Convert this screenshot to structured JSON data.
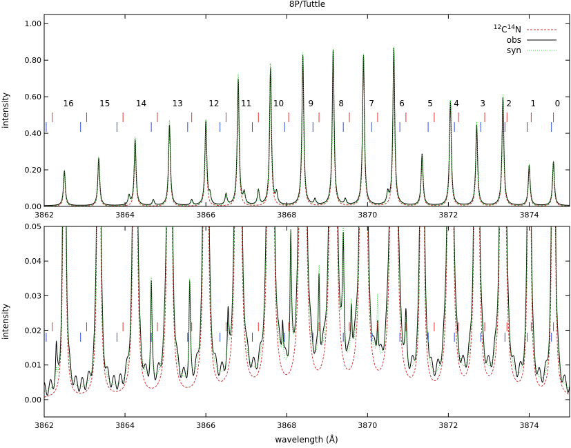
{
  "figure": {
    "title": "8P/Tuttle",
    "xlabel": "wavelength (Å)",
    "ylabel": "intensity"
  },
  "legend": {
    "entries": [
      {
        "label_parts": [
          "12",
          "C",
          "14",
          "N"
        ],
        "color": "#cc3333",
        "style": "dashed"
      },
      {
        "label": "obs",
        "color": "#000000",
        "style": "solid"
      },
      {
        "label": "syn",
        "color": "#22cc22",
        "style": "dotted"
      }
    ]
  },
  "chart_data": [
    {
      "type": "line",
      "panel": "top",
      "xlim": [
        3862,
        3875
      ],
      "ylim": [
        0,
        1.05
      ],
      "xticks": [
        "3862",
        "3864",
        "3866",
        "3868",
        "3870",
        "3872",
        "3874"
      ],
      "yticks": [
        "0.00",
        "0.20",
        "0.40",
        "0.60",
        "0.80",
        "1.00"
      ],
      "xtick_values": [
        3862,
        3864,
        3866,
        3868,
        3870,
        3872,
        3874
      ],
      "ytick_values": [
        0,
        0.2,
        0.4,
        0.6,
        0.8,
        1.0
      ],
      "line_labels": [
        {
          "text": "16",
          "x": 3862.6
        },
        {
          "text": "15",
          "x": 3863.5
        },
        {
          "text": "14",
          "x": 3864.4
        },
        {
          "text": "13",
          "x": 3865.3
        },
        {
          "text": "12",
          "x": 3866.2
        },
        {
          "text": "11",
          "x": 3867.0
        },
        {
          "text": "10",
          "x": 3867.8
        },
        {
          "text": "9",
          "x": 3868.6
        },
        {
          "text": "8",
          "x": 3869.35
        },
        {
          "text": "7",
          "x": 3870.1
        },
        {
          "text": "6",
          "x": 3870.85
        },
        {
          "text": "5",
          "x": 3871.55
        },
        {
          "text": "4",
          "x": 3872.2
        },
        {
          "text": "3",
          "x": 3872.85
        },
        {
          "text": "2",
          "x": 3873.5
        },
        {
          "text": "1",
          "x": 3874.1
        },
        {
          "text": "0",
          "x": 3874.7
        }
      ],
      "series": [
        {
          "name": "obs",
          "peaks": [
            [
              3862.5,
              0.19
            ],
            [
              3863.35,
              0.26
            ],
            [
              3864.25,
              0.36
            ],
            [
              3865.1,
              0.44
            ],
            [
              3866.0,
              0.46
            ],
            [
              3866.8,
              0.69
            ],
            [
              3867.6,
              0.75
            ],
            [
              3868.4,
              0.82
            ],
            [
              3869.15,
              0.85
            ],
            [
              3869.9,
              0.82
            ],
            [
              3870.65,
              0.86
            ],
            [
              3871.35,
              0.28
            ],
            [
              3872.05,
              0.57
            ],
            [
              3872.7,
              0.44
            ],
            [
              3873.35,
              0.59
            ],
            [
              3874.0,
              0.22
            ],
            [
              3874.6,
              0.24
            ]
          ]
        },
        {
          "name": "syn",
          "peaks": [
            [
              3862.5,
              0.2
            ],
            [
              3863.35,
              0.27
            ],
            [
              3864.25,
              0.38
            ],
            [
              3865.1,
              0.47
            ],
            [
              3866.0,
              0.47
            ],
            [
              3866.8,
              0.72
            ],
            [
              3867.6,
              0.78
            ],
            [
              3868.4,
              0.84
            ],
            [
              3869.15,
              0.86
            ],
            [
              3869.9,
              0.83
            ],
            [
              3870.65,
              0.87
            ],
            [
              3871.35,
              0.28
            ],
            [
              3872.05,
              0.58
            ],
            [
              3872.7,
              0.46
            ],
            [
              3873.35,
              0.61
            ],
            [
              3874.0,
              0.23
            ],
            [
              3874.6,
              0.25
            ]
          ]
        },
        {
          "name": "12C14N",
          "peaks": [
            [
              3862.5,
              0.19
            ],
            [
              3863.35,
              0.26
            ],
            [
              3864.25,
              0.36
            ],
            [
              3865.1,
              0.44
            ],
            [
              3866.0,
              0.46
            ],
            [
              3866.8,
              0.69
            ],
            [
              3867.6,
              0.75
            ],
            [
              3868.4,
              0.82
            ],
            [
              3869.15,
              0.85
            ],
            [
              3869.9,
              0.82
            ],
            [
              3870.65,
              0.86
            ],
            [
              3871.35,
              0.28
            ],
            [
              3872.05,
              0.57
            ],
            [
              3872.7,
              0.44
            ],
            [
              3873.35,
              0.59
            ],
            [
              3874.0,
              0.22
            ],
            [
              3874.6,
              0.24
            ]
          ]
        }
      ],
      "red_markers_x": [
        3862.2,
        3863.05,
        3863.95,
        3864.8,
        3865.65,
        3866.5,
        3867.3,
        3868.05,
        3868.8,
        3869.55,
        3870.25,
        3870.95,
        3871.65,
        3872.25,
        3872.9,
        3873.45,
        3874.05,
        3874.6
      ],
      "blue_markers_x": [
        3862.05,
        3862.9,
        3863.8,
        3864.65,
        3865.55,
        3866.35,
        3867.15,
        3867.95,
        3868.65,
        3869.4,
        3870.1,
        3870.8,
        3871.5,
        3872.15,
        3872.8,
        3873.4,
        3873.95,
        3874.55
      ]
    },
    {
      "type": "line",
      "panel": "bottom",
      "xlim": [
        3862,
        3875
      ],
      "ylim": [
        -0.005,
        0.05
      ],
      "xticks": [
        "3862",
        "3864",
        "3866",
        "3868",
        "3870",
        "3872",
        "3874"
      ],
      "yticks": [
        "0.00",
        "0.01",
        "0.02",
        "0.03",
        "0.04",
        "0.05"
      ],
      "xtick_values": [
        3862,
        3864,
        3866,
        3868,
        3870,
        3872,
        3874
      ],
      "ytick_values": [
        0,
        0.01,
        0.02,
        0.03,
        0.04,
        0.05
      ],
      "series": [
        {
          "name": "obs",
          "small_peaks": [
            [
              3862.3,
              0.009
            ],
            [
              3864.65,
              0.027
            ],
            [
              3865.6,
              0.026
            ],
            [
              3866.55,
              0.012
            ],
            [
              3867.9,
              0.012
            ],
            [
              3868.1,
              0.035
            ],
            [
              3868.8,
              0.024
            ],
            [
              3869.4,
              0.03
            ],
            [
              3869.6,
              0.015
            ],
            [
              3870.25,
              0.012
            ],
            [
              3870.95,
              0.012
            ],
            [
              3871.5,
              0.004
            ]
          ]
        },
        {
          "name": "syn",
          "small_peaks": [
            [
              3862.3,
              0.004
            ],
            [
              3864.65,
              0.03
            ],
            [
              3865.6,
              0.029
            ],
            [
              3866.55,
              0.01
            ],
            [
              3867.9,
              0.008
            ],
            [
              3868.1,
              0.037
            ],
            [
              3868.8,
              0.027
            ],
            [
              3869.4,
              0.038
            ],
            [
              3869.6,
              0.016
            ],
            [
              3870.25,
              0.019
            ],
            [
              3870.95,
              0.013
            ],
            [
              3871.5,
              0.006
            ]
          ]
        }
      ]
    }
  ]
}
